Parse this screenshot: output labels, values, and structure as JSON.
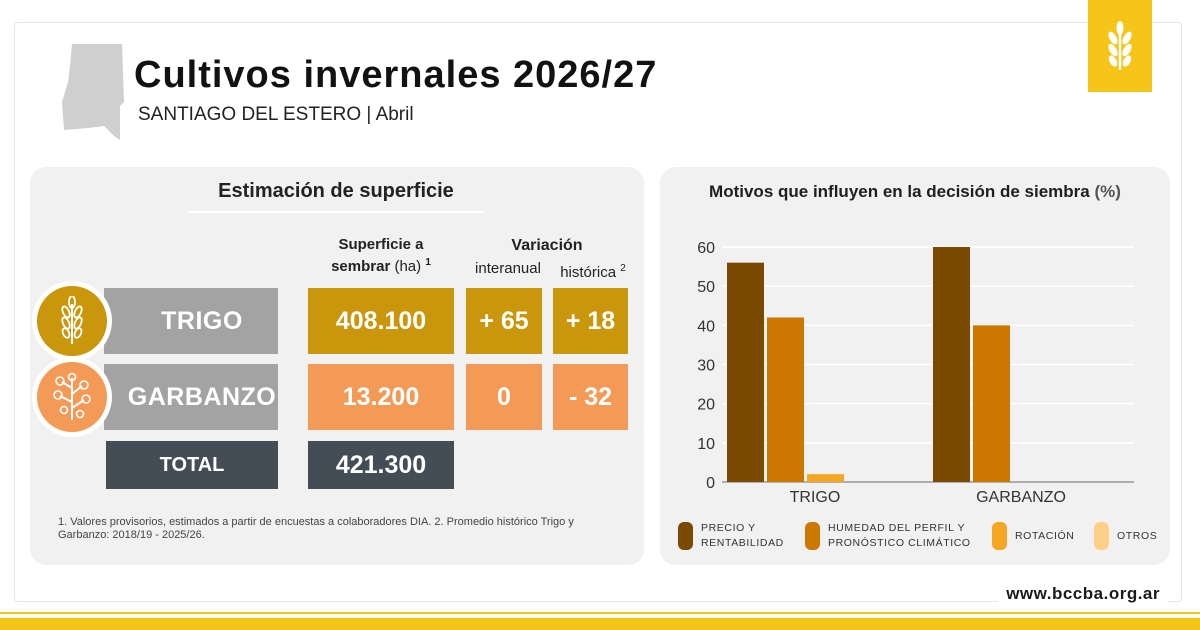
{
  "header": {
    "title": "Cultivos invernales 2026/27",
    "subtitle": "SANTIAGO DEL ESTERO | Abril"
  },
  "colors": {
    "trigo": "#c9960c",
    "garbanzo": "#f29a56",
    "badge_gray": "#a3a3a3",
    "total_dark": "#444c55",
    "brand_yellow": "#f5c518"
  },
  "icons": {
    "map": "santiago-del-estero-map-icon",
    "logo": "wheat-logo-icon",
    "trigo": "wheat-icon",
    "garbanzo": "chickpea-plant-icon"
  },
  "table": {
    "title": "Estimación de superficie",
    "col_surface_line1": "Superficie a",
    "col_surface_line2": "sembrar",
    "col_surface_unit": "(ha)",
    "col_surface_sup": "1",
    "col_variation": "Variación",
    "col_interanual": "interanual",
    "col_historica": "histórica",
    "col_historica_sup": "2",
    "rows": [
      {
        "crop": "TRIGO",
        "surface": "408.100",
        "interanual": "+ 65",
        "historica": "+ 18"
      },
      {
        "crop": "GARBANZO",
        "surface": "13.200",
        "interanual": "0",
        "historica": "- 32"
      }
    ],
    "total_label": "TOTAL",
    "total_value": "421.300",
    "footnote": "1. Valores provisorios, estimados a partir de encuestas a colaboradores DIA. 2. Promedio histórico Trigo y Garbanzo: 2018/19 - 2025/26."
  },
  "chart_data": {
    "type": "bar",
    "title": "Motivos que influyen en la decisión de siembra",
    "title_unit": "(%)",
    "categories": [
      "TRIGO",
      "GARBANZO"
    ],
    "series": [
      {
        "name": "PRECIO Y RENTABILIDAD",
        "name_lines": [
          "PRECIO Y",
          "RENTABILIDAD"
        ],
        "color": "#7a4a00",
        "values": [
          56,
          60
        ]
      },
      {
        "name": "HUMEDAD DEL PERFIL Y PRONÓSTICO CLIMÁTICO",
        "name_lines": [
          "HUMEDAD DEL PERFIL Y",
          "PRONÓSTICO CLIMÁTICO"
        ],
        "color": "#cc7700",
        "values": [
          42,
          40
        ]
      },
      {
        "name": "ROTACIÓN",
        "name_lines": [
          "ROTACIÓN"
        ],
        "color": "#f5a623",
        "values": [
          2,
          0
        ]
      },
      {
        "name": "OTROS",
        "name_lines": [
          "OTROS"
        ],
        "color": "#fdd08a",
        "values": [
          0,
          0
        ]
      }
    ],
    "ylim": [
      0,
      60
    ],
    "yticks": [
      "0",
      "10",
      "20",
      "30",
      "40",
      "50",
      "60"
    ],
    "grid": true,
    "legend": "bottom"
  },
  "footer": {
    "website": "www.bccba.org.ar"
  }
}
